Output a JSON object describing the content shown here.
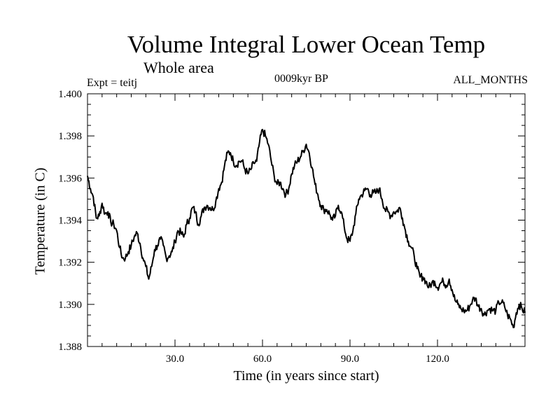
{
  "header": {
    "title": "Volume Integral Lower Ocean Temp",
    "subtitle": "Whole area",
    "experiment": "Expt = teitj",
    "period": "0009kyr BP",
    "months": "ALL_MONTHS"
  },
  "chart_data": {
    "type": "line",
    "title": "Volume Integral Lower Ocean Temp",
    "subtitle": "Whole area",
    "xlabel": "Time (in years since start)",
    "ylabel": "Temperature (in C)",
    "xlim": [
      0,
      150
    ],
    "ylim": [
      1.388,
      1.4
    ],
    "x_ticks": [
      30,
      60,
      90,
      120
    ],
    "x_tick_labels": [
      "30.0",
      "60.0",
      "90.0",
      "120.0"
    ],
    "y_ticks": [
      1.388,
      1.39,
      1.392,
      1.394,
      1.396,
      1.398,
      1.4
    ],
    "y_tick_labels": [
      "1.388",
      "1.390",
      "1.392",
      "1.394",
      "1.396",
      "1.398",
      "1.400"
    ],
    "grid": false,
    "series": [
      {
        "name": "Volume Integral Lower Ocean Temp",
        "x": [
          0,
          1,
          2,
          3,
          4,
          5,
          6,
          7,
          8,
          9,
          10,
          11,
          12,
          13,
          14,
          15,
          16,
          17,
          18,
          19,
          20,
          21,
          22,
          23,
          24,
          25,
          26,
          27,
          28,
          29,
          30,
          31,
          32,
          33,
          34,
          35,
          36,
          37,
          38,
          39,
          40,
          41,
          42,
          43,
          44,
          45,
          46,
          47,
          48,
          49,
          50,
          51,
          52,
          53,
          54,
          55,
          56,
          57,
          58,
          59,
          60,
          61,
          62,
          63,
          64,
          65,
          66,
          67,
          68,
          69,
          70,
          71,
          72,
          73,
          74,
          75,
          76,
          77,
          78,
          79,
          80,
          81,
          82,
          83,
          84,
          85,
          86,
          87,
          88,
          89,
          90,
          91,
          92,
          93,
          94,
          95,
          96,
          97,
          98,
          99,
          100,
          101,
          102,
          103,
          104,
          105,
          106,
          107,
          108,
          109,
          110,
          111,
          112,
          113,
          114,
          115,
          116,
          117,
          118,
          119,
          120,
          121,
          122,
          123,
          124,
          125,
          126,
          127,
          128,
          129,
          130,
          131,
          132,
          133,
          134,
          135,
          136,
          137,
          138,
          139,
          140,
          141,
          142,
          143,
          144,
          145,
          146,
          147,
          148,
          149,
          150
        ],
        "y": [
          1.3961,
          1.3955,
          1.3951,
          1.3941,
          1.3942,
          1.3948,
          1.3943,
          1.3944,
          1.3939,
          1.3938,
          1.3935,
          1.3927,
          1.3922,
          1.3922,
          1.3925,
          1.3928,
          1.3932,
          1.3934,
          1.3929,
          1.3922,
          1.3918,
          1.3912,
          1.3918,
          1.3926,
          1.3928,
          1.3931,
          1.3928,
          1.3922,
          1.3923,
          1.3925,
          1.393,
          1.3935,
          1.3934,
          1.3932,
          1.3938,
          1.3941,
          1.3946,
          1.3944,
          1.3938,
          1.3942,
          1.3946,
          1.3947,
          1.3946,
          1.3945,
          1.3949,
          1.3955,
          1.3958,
          1.3966,
          1.3972,
          1.3972,
          1.3968,
          1.3966,
          1.3968,
          1.3968,
          1.3964,
          1.3962,
          1.3964,
          1.3967,
          1.3968,
          1.3977,
          1.3983,
          1.398,
          1.3976,
          1.3968,
          1.3961,
          1.3957,
          1.3958,
          1.3955,
          1.3952,
          1.3955,
          1.3962,
          1.3966,
          1.3968,
          1.397,
          1.3973,
          1.3976,
          1.3972,
          1.3965,
          1.3957,
          1.3952,
          1.3947,
          1.3945,
          1.3945,
          1.3943,
          1.394,
          1.3942,
          1.3947,
          1.3944,
          1.3937,
          1.3931,
          1.393,
          1.3935,
          1.3943,
          1.395,
          1.3952,
          1.3954,
          1.3955,
          1.3952,
          1.3953,
          1.3953,
          1.3955,
          1.395,
          1.3945,
          1.3944,
          1.3942,
          1.3944,
          1.3944,
          1.3946,
          1.3941,
          1.3935,
          1.393,
          1.3927,
          1.3923,
          1.3917,
          1.3913,
          1.3913,
          1.3911,
          1.3908,
          1.391,
          1.3911,
          1.3908,
          1.391,
          1.3911,
          1.3909,
          1.3912,
          1.3907,
          1.3902,
          1.39,
          1.3898,
          1.3897,
          1.3897,
          1.3899,
          1.3902,
          1.3903,
          1.3899,
          1.3898,
          1.3895,
          1.3897,
          1.3898,
          1.3897,
          1.3897,
          1.3901,
          1.3901,
          1.3899,
          1.3895,
          1.3893,
          1.3889,
          1.3896,
          1.39,
          1.3898,
          1.3896
        ]
      }
    ]
  }
}
